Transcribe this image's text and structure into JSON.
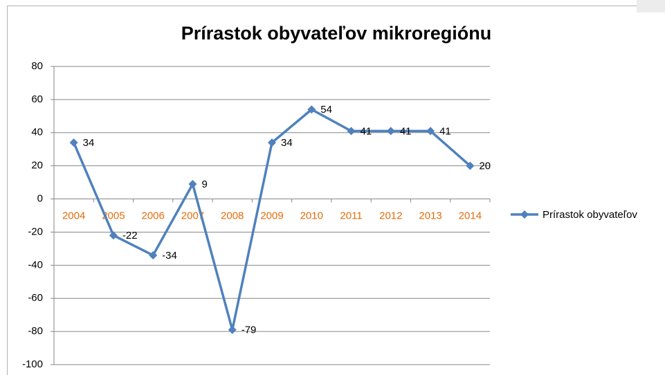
{
  "chart_data": {
    "type": "line",
    "title": "Prírastok obyvateľov mikroregiónu",
    "categories": [
      "2004",
      "2005",
      "2006",
      "2007",
      "2008",
      "2009",
      "2010",
      "2011",
      "2012",
      "2013",
      "2014"
    ],
    "series": [
      {
        "name": "Prírastok obyvateľov",
        "color": "#4f81bd",
        "values": [
          34,
          -22,
          -34,
          9,
          -79,
          34,
          54,
          41,
          41,
          41,
          20
        ]
      }
    ],
    "ylim": [
      -100,
      80
    ],
    "yticks": [
      -100,
      -80,
      -60,
      -40,
      -20,
      0,
      20,
      40,
      60,
      80
    ],
    "grid": true,
    "legend": "right"
  }
}
